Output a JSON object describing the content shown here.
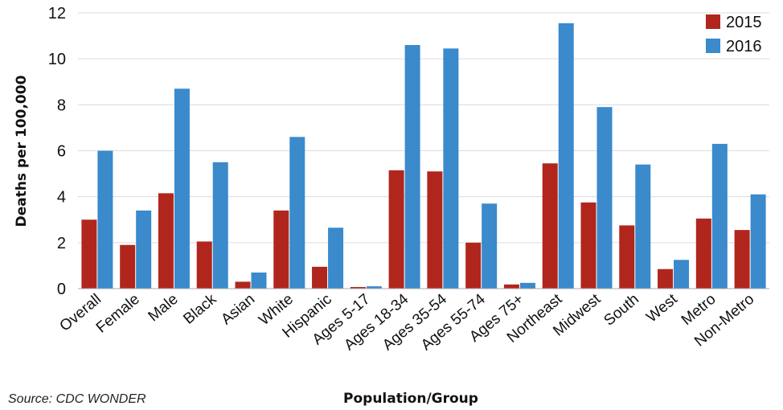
{
  "chart_data": {
    "type": "bar",
    "categories": [
      "Overall",
      "Female",
      "Male",
      "Black",
      "Asian",
      "White",
      "Hispanic",
      "Ages 5-17",
      "Ages 18-34",
      "Ages 35-54",
      "Ages 55-74",
      "Ages 75+",
      "Northeast",
      "Midwest",
      "South",
      "West",
      "Metro",
      "Non-Metro"
    ],
    "series": [
      {
        "name": "2015",
        "color": "#B1261C",
        "values": [
          3.0,
          1.9,
          4.15,
          2.05,
          0.3,
          3.4,
          0.95,
          0.07,
          5.15,
          5.1,
          2.0,
          0.18,
          5.45,
          3.75,
          2.75,
          0.85,
          3.05,
          2.55
        ]
      },
      {
        "name": "2016",
        "color": "#3A8ACC",
        "values": [
          6.0,
          3.4,
          8.7,
          5.5,
          0.7,
          6.6,
          2.65,
          0.1,
          10.6,
          10.45,
          3.7,
          0.25,
          11.55,
          7.9,
          5.4,
          1.25,
          6.3,
          4.1
        ]
      }
    ],
    "xlabel": "Population/Group",
    "ylabel": "Deaths per 100,000",
    "ylim": [
      0,
      12
    ],
    "yticks": [
      0,
      2,
      4,
      6,
      8,
      10,
      12
    ],
    "grid": true,
    "legend_position": "top-right",
    "source": "Source: CDC WONDER"
  }
}
